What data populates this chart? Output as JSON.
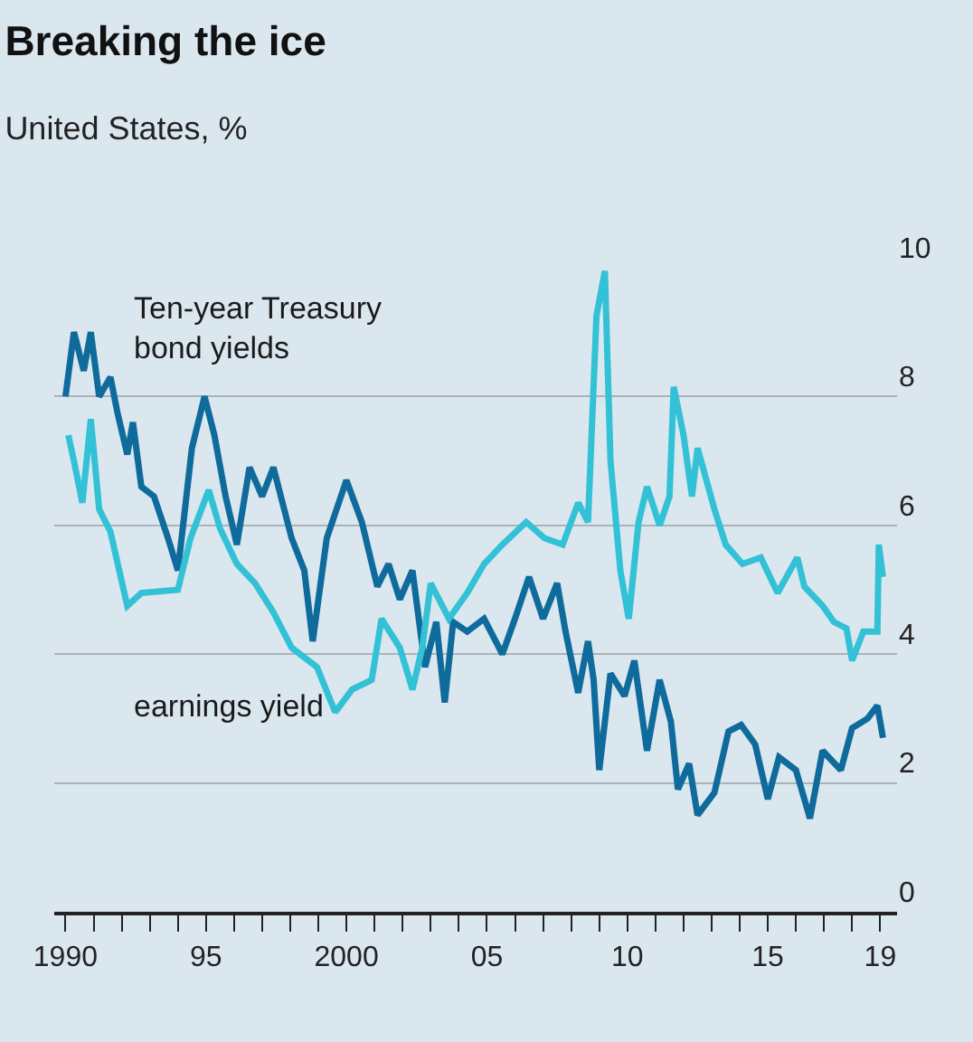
{
  "chart_data": {
    "type": "line",
    "title": "Breaking the ice",
    "subtitle": "United States, %",
    "xlim": [
      1989.6,
      2019.6
    ],
    "xticks": [
      {
        "value": 1990,
        "label": "1990"
      },
      {
        "value": 1991,
        "label": null
      },
      {
        "value": 1992,
        "label": null
      },
      {
        "value": 1993,
        "label": null
      },
      {
        "value": 1994,
        "label": null
      },
      {
        "value": 1995,
        "label": "95"
      },
      {
        "value": 1996,
        "label": null
      },
      {
        "value": 1997,
        "label": null
      },
      {
        "value": 1998,
        "label": null
      },
      {
        "value": 1999,
        "label": null
      },
      {
        "value": 2000,
        "label": "2000"
      },
      {
        "value": 2001,
        "label": null
      },
      {
        "value": 2002,
        "label": null
      },
      {
        "value": 2003,
        "label": null
      },
      {
        "value": 2004,
        "label": null
      },
      {
        "value": 2005,
        "label": "05"
      },
      {
        "value": 2006,
        "label": null
      },
      {
        "value": 2007,
        "label": null
      },
      {
        "value": 2008,
        "label": null
      },
      {
        "value": 2009,
        "label": null
      },
      {
        "value": 2010,
        "label": "10"
      },
      {
        "value": 2011,
        "label": null
      },
      {
        "value": 2012,
        "label": null
      },
      {
        "value": 2013,
        "label": null
      },
      {
        "value": 2014,
        "label": null
      },
      {
        "value": 2015,
        "label": "15"
      },
      {
        "value": 2016,
        "label": null
      },
      {
        "value": 2017,
        "label": null
      },
      {
        "value": 2018,
        "label": null
      },
      {
        "value": 2019,
        "label": "19"
      }
    ],
    "ylim": [
      0,
      10
    ],
    "yticks": [
      0,
      2,
      4,
      6,
      8,
      10
    ],
    "grid": "y",
    "legend": false,
    "line_style": "solid",
    "marker": "none",
    "series": [
      {
        "name": "Ten-year Treasury bond yields",
        "color": "#0f6b9c",
        "x": [
          1990.0,
          1990.3,
          1990.65,
          1990.9,
          1991.2,
          1991.6,
          1991.85,
          1992.2,
          1992.4,
          1992.7,
          1993.15,
          1993.65,
          1994.0,
          1994.2,
          1994.5,
          1994.95,
          1995.3,
          1995.7,
          1996.1,
          1996.55,
          1997.0,
          1997.4,
          1998.05,
          1998.5,
          1998.8,
          1999.3,
          2000.0,
          2000.55,
          2001.1,
          2001.5,
          2001.9,
          2002.35,
          2002.8,
          2003.2,
          2003.5,
          2003.8,
          2004.3,
          2004.9,
          2005.55,
          2006.0,
          2006.5,
          2007.0,
          2007.5,
          2007.8,
          2008.25,
          2008.6,
          2008.8,
          2009.0,
          2009.4,
          2009.9,
          2010.25,
          2010.7,
          2011.15,
          2011.55,
          2011.8,
          2012.2,
          2012.5,
          2013.1,
          2013.6,
          2014.05,
          2014.55,
          2015.0,
          2015.4,
          2016.0,
          2016.5,
          2016.95,
          2017.6,
          2018.0,
          2018.55,
          2018.9,
          2019.1
        ],
        "values": [
          8.0,
          9.0,
          8.4,
          9.0,
          8.0,
          8.3,
          7.75,
          7.1,
          7.6,
          6.6,
          6.45,
          5.8,
          5.3,
          6.05,
          7.2,
          8.0,
          7.4,
          6.45,
          5.7,
          6.9,
          6.45,
          6.9,
          5.8,
          5.3,
          4.2,
          5.8,
          6.7,
          6.05,
          5.05,
          5.4,
          4.85,
          5.3,
          3.8,
          4.5,
          3.25,
          4.5,
          4.35,
          4.55,
          4.0,
          4.55,
          5.2,
          4.55,
          5.1,
          4.35,
          3.4,
          4.2,
          3.6,
          2.2,
          3.7,
          3.35,
          3.9,
          2.5,
          3.6,
          2.95,
          1.9,
          2.3,
          1.5,
          1.85,
          2.8,
          2.9,
          2.6,
          1.75,
          2.4,
          2.2,
          1.45,
          2.5,
          2.2,
          2.85,
          3.0,
          3.2,
          2.7
        ]
      },
      {
        "name": "earnings yield",
        "color": "#33c1d6",
        "x": [
          1990.1,
          1990.3,
          1990.6,
          1990.9,
          1991.2,
          1991.6,
          1992.2,
          1992.7,
          1994.0,
          1994.45,
          1995.1,
          1995.5,
          1996.1,
          1996.75,
          1997.4,
          1998.05,
          1998.95,
          1999.6,
          2000.2,
          2000.9,
          2001.25,
          2001.9,
          2002.35,
          2002.7,
          2003.0,
          2003.65,
          2004.3,
          2004.9,
          2005.55,
          2006.4,
          2007.05,
          2007.7,
          2008.25,
          2008.6,
          2008.9,
          2009.2,
          2009.4,
          2009.75,
          2010.05,
          2010.4,
          2010.7,
          2011.15,
          2011.5,
          2011.65,
          2012.0,
          2012.3,
          2012.5,
          2013.1,
          2013.5,
          2014.1,
          2014.75,
          2015.35,
          2016.05,
          2016.3,
          2016.95,
          2017.35,
          2017.8,
          2018.0,
          2018.4,
          2018.9,
          2018.95,
          2019.1
        ],
        "values": [
          7.4,
          7.0,
          6.35,
          7.65,
          6.25,
          5.9,
          4.75,
          4.95,
          5.0,
          5.8,
          6.55,
          5.95,
          5.4,
          5.1,
          4.65,
          4.1,
          3.8,
          3.1,
          3.45,
          3.6,
          4.55,
          4.1,
          3.45,
          4.1,
          5.1,
          4.55,
          4.95,
          5.4,
          5.7,
          6.05,
          5.8,
          5.7,
          6.35,
          6.05,
          9.25,
          9.95,
          7.0,
          5.3,
          4.55,
          6.05,
          6.6,
          6.0,
          6.45,
          8.15,
          7.4,
          6.45,
          7.2,
          6.25,
          5.7,
          5.4,
          5.5,
          4.95,
          5.5,
          5.05,
          4.75,
          4.5,
          4.4,
          3.9,
          4.35,
          4.35,
          5.7,
          5.2
        ]
      }
    ]
  }
}
